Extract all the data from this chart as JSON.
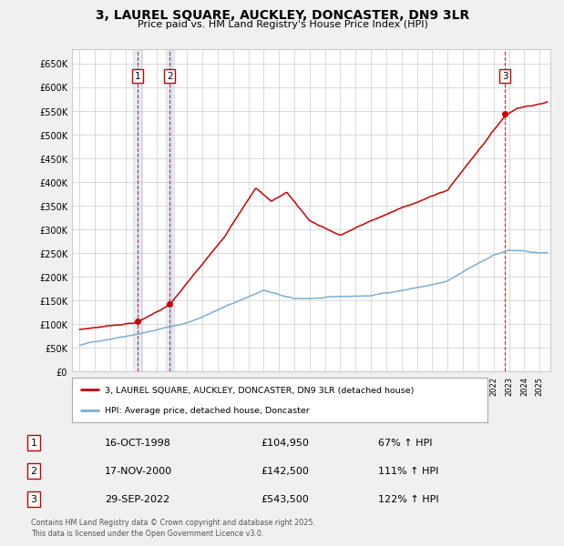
{
  "title": "3, LAUREL SQUARE, AUCKLEY, DONCASTER, DN9 3LR",
  "subtitle": "Price paid vs. HM Land Registry's House Price Index (HPI)",
  "background_color": "#f0f0f0",
  "plot_bg_color": "#ffffff",
  "grid_color": "#cccccc",
  "ylim": [
    0,
    680000
  ],
  "yticks": [
    0,
    50000,
    100000,
    150000,
    200000,
    250000,
    300000,
    350000,
    400000,
    450000,
    500000,
    550000,
    600000,
    650000
  ],
  "ytick_labels": [
    "£0",
    "£50K",
    "£100K",
    "£150K",
    "£200K",
    "£250K",
    "£300K",
    "£350K",
    "£400K",
    "£450K",
    "£500K",
    "£550K",
    "£600K",
    "£650K"
  ],
  "sale_dates_num": [
    1998.79,
    2000.88,
    2022.74
  ],
  "sale_prices": [
    104950,
    142500,
    543500
  ],
  "sale_labels": [
    "1",
    "2",
    "3"
  ],
  "vline_color": "#cc0000",
  "vshade_color": "#aac8e8",
  "vshade_alpha": 0.3,
  "sale_marker_color": "#cc0000",
  "legend_label_red": "3, LAUREL SQUARE, AUCKLEY, DONCASTER, DN9 3LR (detached house)",
  "legend_label_blue": "HPI: Average price, detached house, Doncaster",
  "table_entries": [
    {
      "label": "1",
      "date": "16-OCT-1998",
      "price": "£104,950",
      "change": "67% ↑ HPI"
    },
    {
      "label": "2",
      "date": "17-NOV-2000",
      "price": "£142,500",
      "change": "111% ↑ HPI"
    },
    {
      "label": "3",
      "date": "29-SEP-2022",
      "price": "£543,500",
      "change": "122% ↑ HPI"
    }
  ],
  "footer": "Contains HM Land Registry data © Crown copyright and database right 2025.\nThis data is licensed under the Open Government Licence v3.0.",
  "red_line_color": "#cc0000",
  "blue_line_color": "#7bafd4",
  "xlim_left": 1994.5,
  "xlim_right": 2025.7
}
